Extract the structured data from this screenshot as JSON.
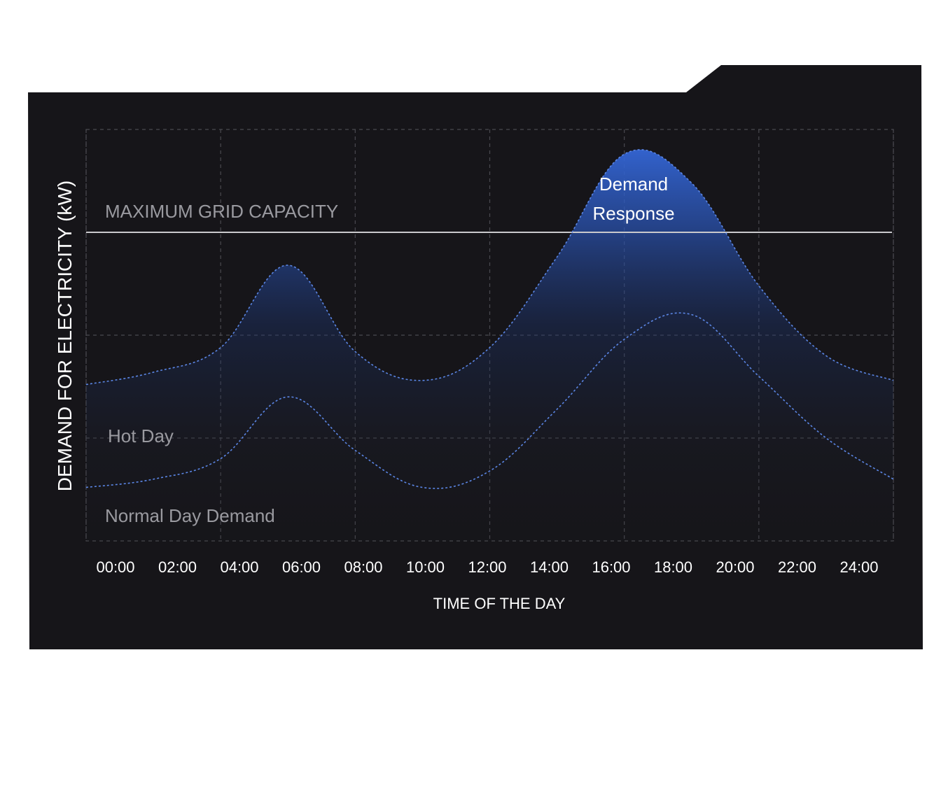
{
  "colors": {
    "panel": "#161519",
    "grid": "#4a4a50",
    "capacity_line": "#c9c9cc",
    "curve": "#5b86e5",
    "fill": "#2f5fc7",
    "label_muted": "#9a9aa0",
    "label_bright": "#ffffff"
  },
  "chart_data": {
    "type": "area",
    "title": "",
    "xlabel": "TIME OF THE DAY",
    "ylabel": "DEMAND FOR ELECTRICITY (kW)",
    "x_ticks": [
      "00:00",
      "02:00",
      "04:00",
      "06:00",
      "08:00",
      "10:00",
      "12:00",
      "14:00",
      "16:00",
      "18:00",
      "20:00",
      "22:00",
      "24:00"
    ],
    "xlim": [
      0,
      24
    ],
    "ylim": [
      0,
      100
    ],
    "grid": true,
    "legend": "none",
    "capacity": {
      "label": "MAXIMUM GRID CAPACITY",
      "value": 75
    },
    "series": [
      {
        "name": "Hot Day",
        "x": [
          0,
          2,
          4,
          6,
          8,
          10,
          12,
          14,
          16,
          18,
          20,
          22,
          24
        ],
        "values": [
          38,
          41,
          47,
          67,
          46,
          39,
          47,
          69,
          94,
          87,
          62,
          45,
          39
        ]
      },
      {
        "name": "Normal Day Demand",
        "x": [
          0,
          2,
          4,
          6,
          8,
          10,
          12,
          14,
          16,
          18,
          20,
          22,
          24
        ],
        "values": [
          13,
          15,
          20,
          35,
          22,
          13,
          17,
          32,
          49,
          55,
          40,
          25,
          15
        ]
      }
    ],
    "annotations": [
      {
        "text_line1": "Demand",
        "text_line2": "Response",
        "x": 16.3,
        "y": 87
      }
    ]
  }
}
